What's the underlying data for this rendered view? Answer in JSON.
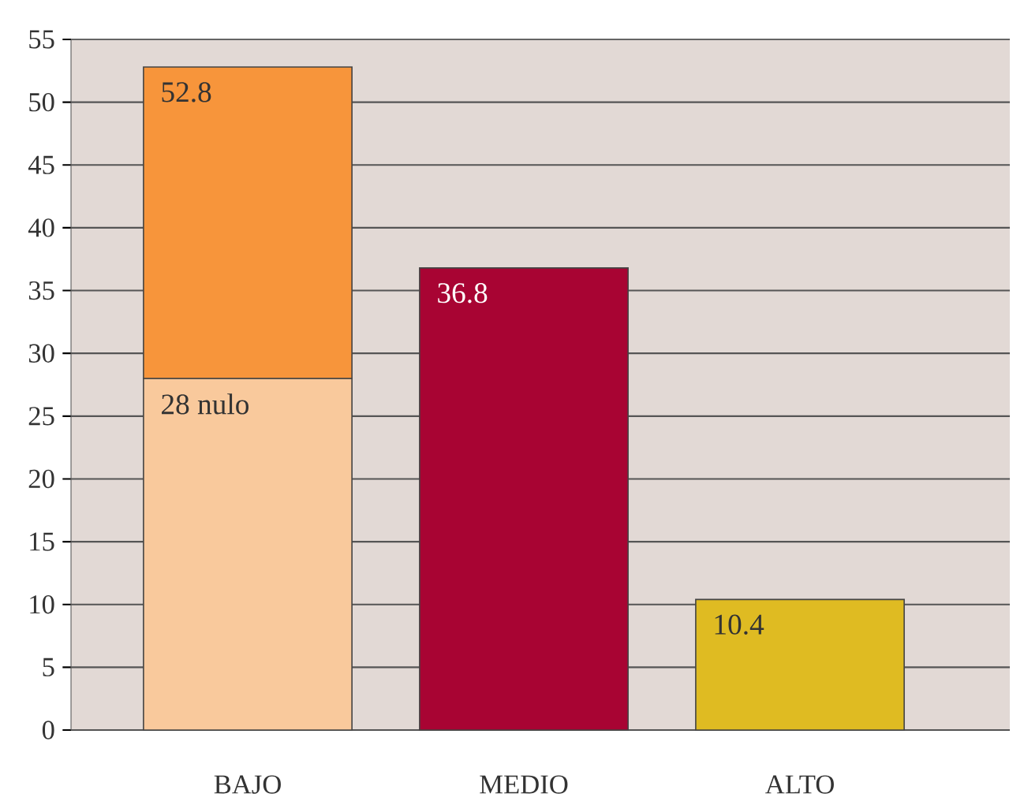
{
  "chart_data": {
    "type": "bar",
    "stacked": true,
    "categories": [
      "BAJO",
      "MEDIO",
      "ALTO"
    ],
    "series": [
      {
        "colors": [
          "#f9c99c",
          "#a80433",
          "#dfbb22"
        ],
        "values": [
          28,
          36.8,
          10.4
        ],
        "value_labels": [
          "28 nulo",
          "36.8",
          "10.4"
        ]
      },
      {
        "colors": [
          "#f7953b",
          null,
          null
        ],
        "values": [
          24.8,
          null,
          null
        ]
      }
    ],
    "totals": [
      "52.8",
      null,
      null
    ],
    "ylim": [
      0,
      55
    ],
    "yticks": [
      0,
      5,
      10,
      15,
      20,
      25,
      30,
      35,
      40,
      45,
      50,
      55
    ],
    "grid": "y"
  }
}
